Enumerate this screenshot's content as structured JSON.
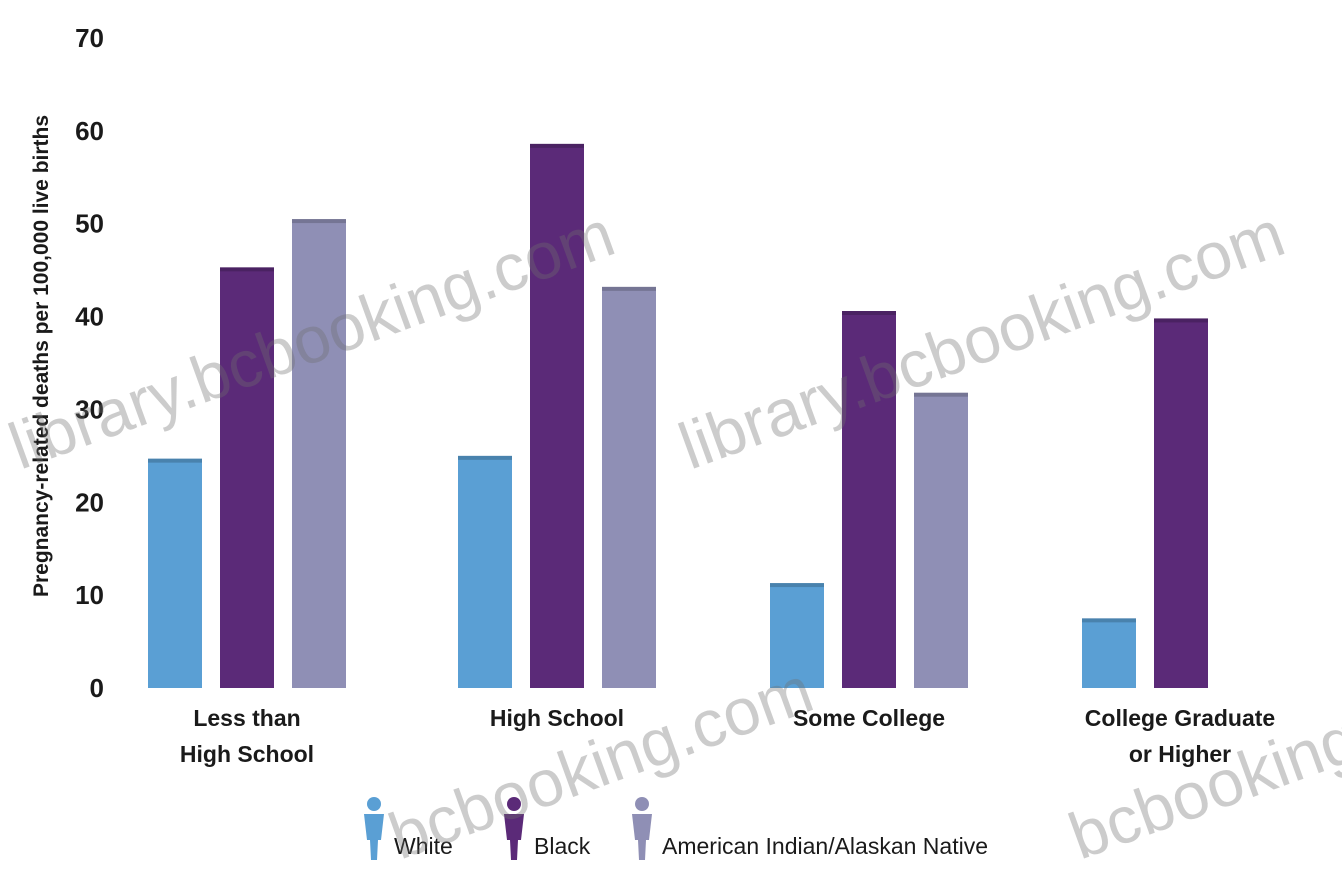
{
  "chart_data": {
    "type": "bar",
    "ylabel": "Pregnancy-related deaths per 100,000 live births",
    "ylim": [
      0,
      70
    ],
    "yticks": [
      0,
      10,
      20,
      30,
      40,
      50,
      60,
      70
    ],
    "grid": false,
    "legend_position": "bottom",
    "categories": [
      [
        "Less than",
        "High School"
      ],
      [
        "High School"
      ],
      [
        "Some College"
      ],
      [
        "College Graduate",
        "or Higher"
      ]
    ],
    "series": [
      {
        "name": "White",
        "color": "#5a9fd4",
        "icon": "person-icon",
        "values": [
          24.7,
          25.0,
          11.3,
          7.5
        ]
      },
      {
        "name": "Black",
        "color": "#5b2a78",
        "icon": "person-icon",
        "values": [
          45.3,
          58.6,
          40.6,
          39.8
        ]
      },
      {
        "name": "American Indian/Alaskan Native",
        "color": "#8f8fb5",
        "icon": "person-icon",
        "values": [
          50.5,
          43.2,
          31.8,
          null
        ]
      }
    ]
  },
  "watermarks": [
    "library.bcbooking.com",
    "library.bcbooking.com",
    "bcbooking.com",
    "bcbooking.com"
  ]
}
